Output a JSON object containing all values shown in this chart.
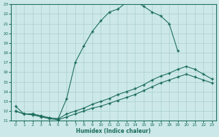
{
  "xlabel": "Humidex (Indice chaleur)",
  "ylabel": "",
  "xlim": [
    -0.5,
    23.5
  ],
  "ylim": [
    11,
    23
  ],
  "xticks": [
    0,
    1,
    2,
    3,
    4,
    5,
    6,
    7,
    8,
    9,
    10,
    11,
    12,
    13,
    14,
    15,
    16,
    17,
    18,
    19,
    20,
    21,
    22,
    23
  ],
  "yticks": [
    11,
    12,
    13,
    14,
    15,
    16,
    17,
    18,
    19,
    20,
    21,
    22,
    23
  ],
  "bg_color": "#cce8e8",
  "line_color": "#1a6b5a",
  "grid_color": "#aacece",
  "line1_x": [
    0,
    1,
    2,
    3,
    4,
    5,
    6,
    7,
    8,
    9,
    10,
    11,
    12,
    13,
    14,
    15,
    16,
    17,
    18,
    19
  ],
  "line1_y": [
    12.5,
    11.7,
    11.7,
    11.5,
    11.3,
    11.2,
    13.3,
    17.0,
    18.7,
    20.2,
    21.3,
    22.2,
    22.5,
    23.2,
    23.3,
    22.8,
    22.2,
    21.8,
    21.0,
    18.2
  ],
  "line2_x": [
    0,
    1,
    2,
    3,
    4,
    5,
    6,
    7,
    8,
    9,
    10,
    11,
    12,
    13,
    14,
    15,
    16,
    17,
    18,
    19,
    20,
    21,
    22,
    23
  ],
  "line2_y": [
    12.0,
    11.7,
    11.7,
    11.5,
    11.3,
    11.2,
    11.7,
    12.0,
    12.3,
    12.7,
    13.0,
    13.3,
    13.7,
    14.0,
    14.3,
    14.7,
    15.2,
    15.6,
    15.9,
    16.3,
    16.6,
    16.3,
    15.8,
    15.3
  ],
  "line3_x": [
    0,
    1,
    2,
    3,
    4,
    5,
    6,
    7,
    8,
    9,
    10,
    11,
    12,
    13,
    14,
    15,
    16,
    17,
    18,
    19,
    20,
    21,
    22,
    23
  ],
  "line3_y": [
    12.0,
    11.7,
    11.6,
    11.4,
    11.2,
    11.1,
    11.4,
    11.7,
    12.0,
    12.3,
    12.5,
    12.8,
    13.1,
    13.4,
    13.7,
    14.1,
    14.5,
    14.9,
    15.2,
    15.5,
    15.8,
    15.5,
    15.2,
    14.9
  ]
}
